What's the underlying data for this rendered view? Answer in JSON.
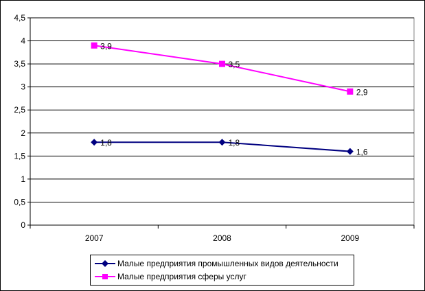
{
  "chart_data": {
    "type": "line",
    "categories": [
      "2007",
      "2008",
      "2009"
    ],
    "series": [
      {
        "name": "Малые предприятия промышленных видов деятельности",
        "values": [
          1.8,
          1.8,
          1.6
        ],
        "labels": [
          "1,8",
          "1,8",
          "1,6"
        ],
        "color": "#000080",
        "marker": "diamond"
      },
      {
        "name": "Малые предприятия сферы услуг",
        "values": [
          3.9,
          3.5,
          2.9
        ],
        "labels": [
          "3,9",
          "3,5",
          "2,9"
        ],
        "color": "#ff00ff",
        "marker": "square"
      }
    ],
    "y_ticks": [
      "0",
      "0,5",
      "1",
      "1,5",
      "2",
      "2,5",
      "3",
      "3,5",
      "4",
      "4,5"
    ],
    "ylim": [
      0,
      4.5
    ],
    "grid": true,
    "legend_position": "bottom"
  }
}
